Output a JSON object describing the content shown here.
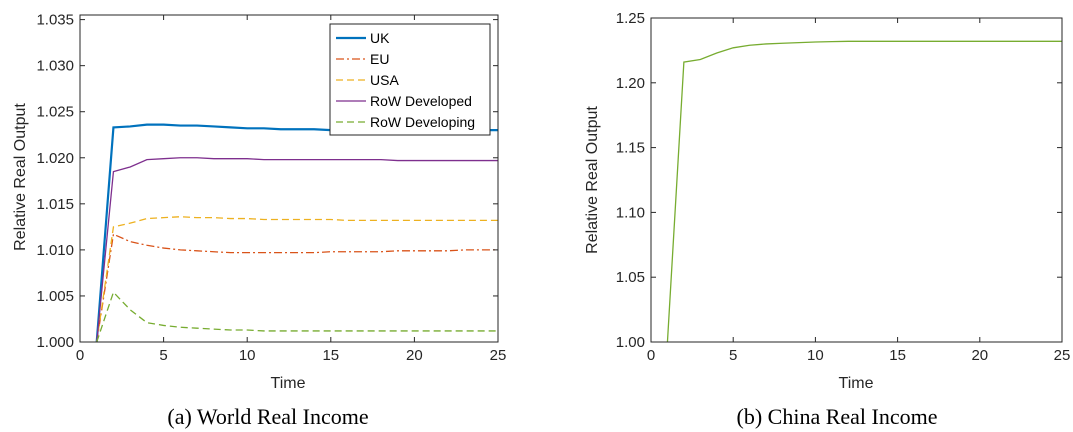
{
  "chart_data": [
    {
      "type": "line",
      "caption": "(a) World Real Income",
      "xlabel": "Time",
      "ylabel": "Relative Real Output",
      "xlim": [
        0,
        25
      ],
      "ylim": [
        1.0,
        1.0355
      ],
      "xticks": [
        "0",
        "5",
        "10",
        "15",
        "20",
        "25"
      ],
      "yticks": [
        "1.000",
        "1.005",
        "1.010",
        "1.015",
        "1.020",
        "1.025",
        "1.030",
        "1.035"
      ],
      "grid": false,
      "legend_position": "top-right",
      "series": [
        {
          "name": "UK",
          "color": "#0072BD",
          "style": "solid",
          "x": [
            1,
            2,
            3,
            4,
            5,
            6,
            7,
            8,
            9,
            10,
            11,
            12,
            13,
            14,
            15,
            16,
            17,
            18,
            19,
            20,
            21,
            22,
            23,
            24,
            25
          ],
          "y": [
            1.0,
            1.0233,
            1.0234,
            1.0236,
            1.0236,
            1.0235,
            1.0235,
            1.0234,
            1.0233,
            1.0232,
            1.0232,
            1.0231,
            1.0231,
            1.0231,
            1.023,
            1.023,
            1.023,
            1.023,
            1.023,
            1.023,
            1.023,
            1.023,
            1.023,
            1.023,
            1.023
          ]
        },
        {
          "name": "EU",
          "color": "#D95319",
          "style": "dashdot",
          "x": [
            1,
            2,
            3,
            4,
            5,
            6,
            7,
            8,
            9,
            10,
            11,
            12,
            13,
            14,
            15,
            16,
            17,
            18,
            19,
            20,
            21,
            22,
            23,
            24,
            25
          ],
          "y": [
            1.0,
            1.0117,
            1.0109,
            1.0105,
            1.0102,
            1.01,
            1.0099,
            1.0098,
            1.0097,
            1.0097,
            1.0097,
            1.0097,
            1.0097,
            1.0097,
            1.0098,
            1.0098,
            1.0098,
            1.0098,
            1.0099,
            1.0099,
            1.0099,
            1.0099,
            1.01,
            1.01,
            1.01
          ]
        },
        {
          "name": "USA",
          "color": "#EDB120",
          "style": "dashed",
          "x": [
            1,
            2,
            3,
            4,
            5,
            6,
            7,
            8,
            9,
            10,
            11,
            12,
            13,
            14,
            15,
            16,
            17,
            18,
            19,
            20,
            21,
            22,
            23,
            24,
            25
          ],
          "y": [
            1.0,
            1.0125,
            1.0129,
            1.0134,
            1.0135,
            1.0136,
            1.0135,
            1.0135,
            1.0134,
            1.0134,
            1.0133,
            1.0133,
            1.0133,
            1.0133,
            1.0133,
            1.0132,
            1.0132,
            1.0132,
            1.0132,
            1.0132,
            1.0132,
            1.0132,
            1.0132,
            1.0132,
            1.0132
          ]
        },
        {
          "name": "RoW Developed",
          "color": "#7E2F8E",
          "style": "solid",
          "x": [
            1,
            2,
            3,
            4,
            5,
            6,
            7,
            8,
            9,
            10,
            11,
            12,
            13,
            14,
            15,
            16,
            17,
            18,
            19,
            20,
            21,
            22,
            23,
            24,
            25
          ],
          "y": [
            1.0,
            1.0185,
            1.019,
            1.0198,
            1.0199,
            1.02,
            1.02,
            1.0199,
            1.0199,
            1.0199,
            1.0198,
            1.0198,
            1.0198,
            1.0198,
            1.0198,
            1.0198,
            1.0198,
            1.0198,
            1.0197,
            1.0197,
            1.0197,
            1.0197,
            1.0197,
            1.0197,
            1.0197
          ]
        },
        {
          "name": "RoW Developing",
          "color": "#77AC30",
          "style": "dashed",
          "x": [
            1,
            2,
            3,
            4,
            5,
            6,
            7,
            8,
            9,
            10,
            11,
            12,
            13,
            14,
            15,
            16,
            17,
            18,
            19,
            20,
            21,
            22,
            23,
            24,
            25
          ],
          "y": [
            1.0,
            1.0054,
            1.0035,
            1.0021,
            1.0018,
            1.0016,
            1.0015,
            1.0014,
            1.0013,
            1.0013,
            1.0012,
            1.0012,
            1.0012,
            1.0012,
            1.0012,
            1.0012,
            1.0012,
            1.0012,
            1.0012,
            1.0012,
            1.0012,
            1.0012,
            1.0012,
            1.0012,
            1.0012
          ]
        }
      ]
    },
    {
      "type": "line",
      "caption": "(b) China Real Income",
      "xlabel": "Time",
      "ylabel": "Relative Real Output",
      "xlim": [
        0,
        25
      ],
      "ylim": [
        1.0,
        1.25
      ],
      "xticks": [
        "0",
        "5",
        "10",
        "15",
        "20",
        "25"
      ],
      "yticks": [
        "1.00",
        "1.05",
        "1.10",
        "1.15",
        "1.20",
        "1.25"
      ],
      "grid": false,
      "series": [
        {
          "color": "#77AC30",
          "style": "solid",
          "x": [
            1,
            2,
            3,
            4,
            5,
            6,
            7,
            8,
            9,
            10,
            11,
            12,
            13,
            14,
            15,
            16,
            17,
            18,
            19,
            20,
            21,
            22,
            23,
            24,
            25
          ],
          "y": [
            1.0,
            1.216,
            1.218,
            1.223,
            1.227,
            1.229,
            1.23,
            1.2305,
            1.231,
            1.2315,
            1.2318,
            1.232,
            1.232,
            1.232,
            1.232,
            1.232,
            1.232,
            1.232,
            1.232,
            1.232,
            1.232,
            1.232,
            1.232,
            1.232,
            1.232
          ]
        }
      ]
    }
  ]
}
